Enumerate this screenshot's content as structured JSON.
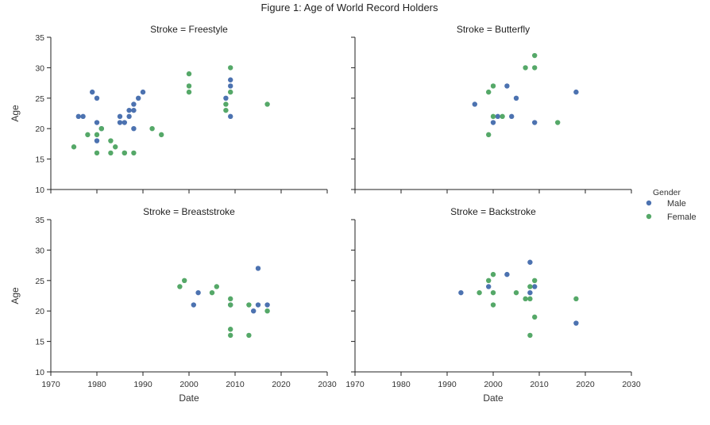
{
  "chart_data": {
    "type": "scatter",
    "title": "Figure 1: Age of World Record Holders",
    "xlabel": "Date",
    "ylabel": "Age",
    "xlim": [
      1970,
      2030
    ],
    "ylim": [
      10,
      35
    ],
    "xticks": [
      1970,
      1980,
      1990,
      2000,
      2010,
      2020,
      2030
    ],
    "yticks": [
      10,
      15,
      20,
      25,
      30,
      35
    ],
    "grid": false,
    "legend": {
      "title": "Gender",
      "placement": "right",
      "entries": [
        {
          "name": "Male",
          "color": "#4c72b0"
        },
        {
          "name": "Female",
          "color": "#55a868"
        }
      ]
    },
    "panels": [
      {
        "title": "Stroke = Freestyle",
        "series": [
          {
            "name": "Male",
            "points": [
              [
                1976,
                22
              ],
              [
                1977,
                22
              ],
              [
                1979,
                26
              ],
              [
                1980,
                25
              ],
              [
                1980,
                21
              ],
              [
                1980,
                18
              ],
              [
                1981,
                20
              ],
              [
                1985,
                22
              ],
              [
                1985,
                21
              ],
              [
                1986,
                21
              ],
              [
                1987,
                23
              ],
              [
                1987,
                22
              ],
              [
                1988,
                23
              ],
              [
                1988,
                24
              ],
              [
                1988,
                20
              ],
              [
                1989,
                25
              ],
              [
                1990,
                26
              ],
              [
                2008,
                25
              ],
              [
                2009,
                28
              ],
              [
                2009,
                27
              ],
              [
                2009,
                22
              ]
            ]
          },
          {
            "name": "Female",
            "points": [
              [
                1975,
                17
              ],
              [
                1978,
                19
              ],
              [
                1980,
                19
              ],
              [
                1980,
                16
              ],
              [
                1981,
                20
              ],
              [
                1983,
                18
              ],
              [
                1983,
                16
              ],
              [
                1984,
                17
              ],
              [
                1986,
                16
              ],
              [
                1986,
                16
              ],
              [
                1988,
                16
              ],
              [
                1992,
                20
              ],
              [
                1994,
                19
              ],
              [
                2000,
                29
              ],
              [
                2000,
                27
              ],
              [
                2000,
                26
              ],
              [
                2008,
                24
              ],
              [
                2008,
                23
              ],
              [
                2009,
                30
              ],
              [
                2009,
                26
              ],
              [
                2017,
                24
              ]
            ]
          }
        ]
      },
      {
        "title": "Stroke = Butterfly",
        "series": [
          {
            "name": "Male",
            "points": [
              [
                1996,
                24
              ],
              [
                2000,
                21
              ],
              [
                2001,
                22
              ],
              [
                2003,
                27
              ],
              [
                2004,
                22
              ],
              [
                2005,
                25
              ],
              [
                2009,
                21
              ],
              [
                2018,
                26
              ]
            ]
          },
          {
            "name": "Female",
            "points": [
              [
                1999,
                26
              ],
              [
                1999,
                19
              ],
              [
                2000,
                27
              ],
              [
                2000,
                22
              ],
              [
                2002,
                22
              ],
              [
                2007,
                30
              ],
              [
                2009,
                32
              ],
              [
                2009,
                30
              ],
              [
                2014,
                21
              ]
            ]
          }
        ]
      },
      {
        "title": "Stroke = Breaststroke",
        "series": [
          {
            "name": "Male",
            "points": [
              [
                2001,
                21
              ],
              [
                2002,
                23
              ],
              [
                2009,
                21
              ],
              [
                2014,
                20
              ],
              [
                2015,
                27
              ],
              [
                2015,
                21
              ],
              [
                2017,
                21
              ]
            ]
          },
          {
            "name": "Female",
            "points": [
              [
                1998,
                24
              ],
              [
                1999,
                25
              ],
              [
                2005,
                23
              ],
              [
                2006,
                24
              ],
              [
                2009,
                22
              ],
              [
                2009,
                21
              ],
              [
                2009,
                17
              ],
              [
                2009,
                16
              ],
              [
                2013,
                21
              ],
              [
                2013,
                16
              ],
              [
                2017,
                20
              ]
            ]
          }
        ]
      },
      {
        "title": "Stroke = Backstroke",
        "series": [
          {
            "name": "Male",
            "points": [
              [
                1993,
                23
              ],
              [
                1999,
                24
              ],
              [
                2003,
                26
              ],
              [
                2008,
                28
              ],
              [
                2008,
                23
              ],
              [
                2009,
                24
              ],
              [
                2018,
                18
              ]
            ]
          },
          {
            "name": "Female",
            "points": [
              [
                1997,
                23
              ],
              [
                1999,
                25
              ],
              [
                2000,
                26
              ],
              [
                2000,
                23
              ],
              [
                2000,
                21
              ],
              [
                2005,
                23
              ],
              [
                2007,
                22
              ],
              [
                2008,
                22
              ],
              [
                2008,
                24
              ],
              [
                2008,
                16
              ],
              [
                2009,
                25
              ],
              [
                2009,
                19
              ],
              [
                2018,
                22
              ]
            ]
          }
        ]
      }
    ]
  }
}
